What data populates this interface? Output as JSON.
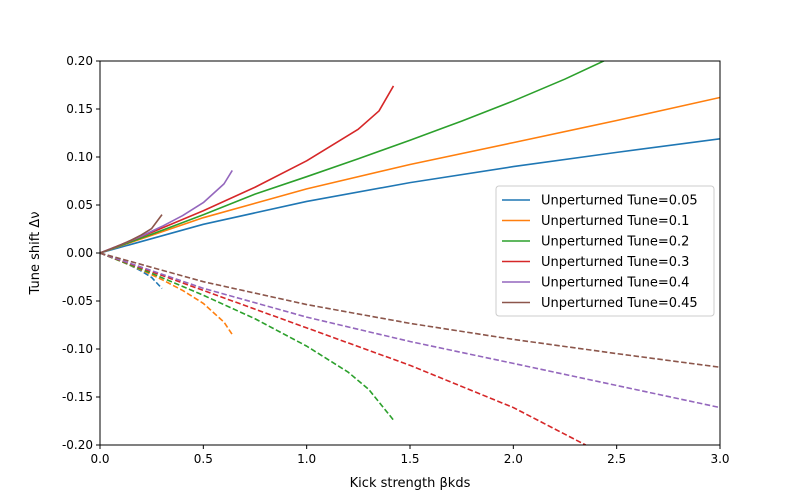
{
  "chart_data": {
    "type": "line",
    "title": "",
    "xlabel": "Kick strength βkds",
    "ylabel": "Tune shift Δν",
    "xlim": [
      0.0,
      3.0
    ],
    "ylim": [
      -0.2,
      0.2
    ],
    "xticks": [
      "0.0",
      "0.5",
      "1.0",
      "1.5",
      "2.0",
      "2.5",
      "3.0"
    ],
    "yticks": [
      "-0.20",
      "-0.15",
      "-0.10",
      "-0.05",
      "0.00",
      "0.05",
      "0.10",
      "0.15",
      "0.20"
    ],
    "grid": false,
    "legend_position": "center-right",
    "series": [
      {
        "name": "Unperturned Tune=0.05",
        "color": "#1f77b4",
        "upper": {
          "x": [
            0,
            0.5,
            1.0,
            1.5,
            2.0,
            2.5,
            3.0
          ],
          "y": [
            0,
            0.0299,
            0.0537,
            0.0733,
            0.09,
            0.1048,
            0.119
          ]
        },
        "lower": {
          "x": [
            0,
            0.05,
            0.1,
            0.15,
            0.2,
            0.25,
            0.3
          ],
          "y": [
            0,
            -0.0041,
            -0.0085,
            -0.0133,
            -0.0188,
            -0.0255,
            -0.037
          ]
        }
      },
      {
        "name": "Unperturned Tune=0.1",
        "color": "#ff7f0e",
        "upper": {
          "x": [
            0,
            0.5,
            1.0,
            1.5,
            2.0,
            2.5,
            3.0
          ],
          "y": [
            0,
            0.0368,
            0.0668,
            0.0922,
            0.115,
            0.138,
            0.162
          ]
        },
        "lower": {
          "x": [
            0,
            0.1,
            0.2,
            0.3,
            0.4,
            0.5,
            0.6,
            0.64
          ],
          "y": [
            0,
            -0.0085,
            -0.0176,
            -0.0277,
            -0.039,
            -0.0525,
            -0.072,
            -0.085
          ]
        }
      },
      {
        "name": "Unperturned Tune=0.2",
        "color": "#2ca02c",
        "upper": {
          "x": [
            0,
            0.25,
            0.5,
            0.75,
            1.0,
            1.25,
            1.5,
            1.75,
            2.0,
            2.25,
            2.5,
            2.7
          ],
          "y": [
            0,
            0.0195,
            0.0398,
            0.0613,
            0.0795,
            0.0982,
            0.1175,
            0.1374,
            0.1584,
            0.1812,
            0.2063,
            0.2286
          ]
        },
        "lower": {
          "x": [
            0,
            0.25,
            0.5,
            0.75,
            1.0,
            1.2,
            1.3,
            1.42
          ],
          "y": [
            0,
            -0.0212,
            -0.044,
            -0.0685,
            -0.097,
            -0.124,
            -0.142,
            -0.174
          ]
        }
      },
      {
        "name": "Unperturned Tune=0.3",
        "color": "#d62728",
        "upper": {
          "x": [
            0,
            0.25,
            0.5,
            0.75,
            1.0,
            1.25,
            1.35,
            1.42
          ],
          "y": [
            0,
            0.0215,
            0.044,
            0.0685,
            0.096,
            0.129,
            0.148,
            0.174
          ]
        },
        "lower": {
          "x": [
            0,
            0.5,
            1.0,
            1.5,
            2.0,
            2.35
          ],
          "y": [
            0,
            -0.039,
            -0.078,
            -0.117,
            -0.161,
            -0.2
          ]
        }
      },
      {
        "name": "Unperturned Tune=0.4",
        "color": "#9467bd",
        "upper": {
          "x": [
            0,
            0.1,
            0.2,
            0.3,
            0.4,
            0.5,
            0.6,
            0.64
          ],
          "y": [
            0,
            0.0085,
            0.0176,
            0.0277,
            0.039,
            0.0525,
            0.072,
            0.086
          ]
        },
        "lower": {
          "x": [
            0,
            0.5,
            1.0,
            1.5,
            2.0,
            2.5,
            3.0
          ],
          "y": [
            0,
            -0.0368,
            -0.0668,
            -0.0922,
            -0.115,
            -0.138,
            -0.161
          ]
        }
      },
      {
        "name": "Unperturned Tune=0.45",
        "color": "#8c564b",
        "upper": {
          "x": [
            0,
            0.05,
            0.1,
            0.15,
            0.2,
            0.25,
            0.3
          ],
          "y": [
            0,
            0.0041,
            0.0085,
            0.0133,
            0.0188,
            0.0255,
            0.04
          ]
        },
        "lower": {
          "x": [
            0,
            0.5,
            1.0,
            1.5,
            2.0,
            2.5,
            3.0
          ],
          "y": [
            0,
            -0.0299,
            -0.0537,
            -0.0733,
            -0.09,
            -0.1048,
            -0.119
          ]
        }
      }
    ]
  }
}
